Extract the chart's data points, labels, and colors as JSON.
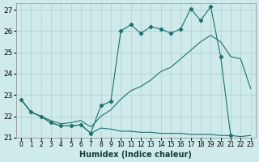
{
  "xlabel": "Humidex (Indice chaleur)",
  "bg_color": "#ceeaea",
  "grid_color": "#aed0d0",
  "line_color": "#1e7070",
  "xlim": [
    -0.5,
    23.5
  ],
  "ylim": [
    21.0,
    27.3
  ],
  "yticks": [
    21,
    22,
    23,
    24,
    25,
    26,
    27
  ],
  "xticks": [
    0,
    1,
    2,
    3,
    4,
    5,
    6,
    7,
    8,
    9,
    10,
    11,
    12,
    13,
    14,
    15,
    16,
    17,
    18,
    19,
    20,
    21,
    22,
    23
  ],
  "line_bottom_x": [
    0,
    1,
    2,
    3,
    4,
    5,
    6,
    7,
    8,
    9,
    10,
    11,
    12,
    13,
    14,
    15,
    16,
    17,
    18,
    19,
    20,
    21,
    22,
    23
  ],
  "line_bottom_y": [
    22.8,
    22.2,
    22.0,
    21.7,
    21.55,
    21.55,
    21.6,
    21.2,
    21.45,
    21.4,
    21.3,
    21.3,
    21.25,
    21.25,
    21.2,
    21.2,
    21.2,
    21.15,
    21.15,
    21.15,
    21.1,
    21.1,
    21.05,
    21.1
  ],
  "line_mid_x": [
    0,
    1,
    2,
    3,
    4,
    5,
    6,
    7,
    8,
    9,
    10,
    11,
    12,
    13,
    14,
    15,
    16,
    17,
    18,
    19,
    20,
    21,
    22,
    23
  ],
  "line_mid_y": [
    22.8,
    22.2,
    22.0,
    21.8,
    21.65,
    21.7,
    21.8,
    21.5,
    22.0,
    22.3,
    22.8,
    23.2,
    23.4,
    23.7,
    24.1,
    24.3,
    24.7,
    25.1,
    25.5,
    25.8,
    25.5,
    24.8,
    24.7,
    23.3
  ],
  "line_top_x": [
    0,
    1,
    2,
    3,
    4,
    5,
    6,
    7,
    8,
    9,
    10,
    11,
    12,
    13,
    14,
    15,
    16,
    17,
    18,
    19,
    20,
    21
  ],
  "line_top_y": [
    22.8,
    22.2,
    22.0,
    21.7,
    21.55,
    21.55,
    21.6,
    21.2,
    22.5,
    22.7,
    26.0,
    26.3,
    25.9,
    26.2,
    26.1,
    25.9,
    26.1,
    27.05,
    26.5,
    27.15,
    24.8,
    21.1
  ]
}
